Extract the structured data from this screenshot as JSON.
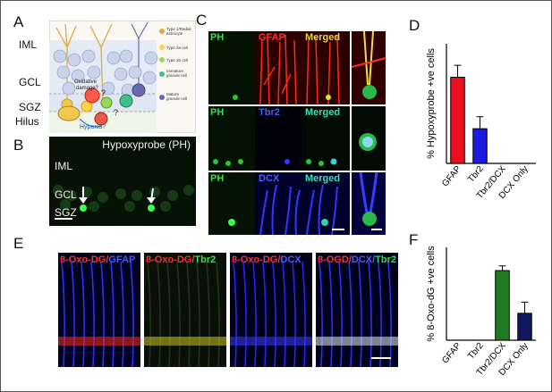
{
  "panels": {
    "A": {
      "letter": "A",
      "layers": [
        "IML",
        "GCL",
        "SGZ",
        "Hilus"
      ],
      "legend": [
        "Type 1/Radial astrocyte",
        "Type 2a cell",
        "Type 2b cell",
        "Immature granule cell",
        "Mature granule cell"
      ],
      "annotations": [
        "Oxidative damage?",
        "Hypoxia?",
        "?",
        "?"
      ]
    },
    "B": {
      "letter": "B",
      "title": "Hypoxyprobe (PH)",
      "layers": [
        "IML",
        "GCL",
        "SGZ"
      ]
    },
    "C": {
      "letter": "C",
      "rows": [
        [
          "PH",
          "GFAP",
          "Merged"
        ],
        [
          "PH",
          "Tbr2",
          "Merged"
        ],
        [
          "PH",
          "DCX",
          "Merged"
        ]
      ]
    },
    "E": {
      "letter": "E",
      "labels": [
        [
          {
            "t": "8-Oxo-DG",
            "c": "#ff3030"
          },
          {
            "t": "/",
            "c": "#ff3030"
          },
          {
            "t": "GFAP",
            "c": "#4a5cff"
          }
        ],
        [
          {
            "t": "8-Oxo-DG",
            "c": "#ff3030"
          },
          {
            "t": "/",
            "c": "#ff3030"
          },
          {
            "t": "Tbr2",
            "c": "#33e04a"
          }
        ],
        [
          {
            "t": "8-Oxo-DG",
            "c": "#ff3030"
          },
          {
            "t": "/",
            "c": "#ff3030"
          },
          {
            "t": "DCX",
            "c": "#4a5cff"
          }
        ],
        [
          {
            "t": "8-OGD",
            "c": "#ff3030"
          },
          {
            "t": "/",
            "c": "#ff3030"
          },
          {
            "t": "DCX",
            "c": "#4a5cff"
          },
          {
            "t": "/",
            "c": "#4a5cff"
          },
          {
            "t": "Tbr2",
            "c": "#33e04a"
          }
        ]
      ]
    }
  },
  "chart_data": [
    {
      "letter": "D",
      "type": "bar",
      "ylabel": "% Hypoxyprobe +ve cells",
      "categories": [
        "GFAP",
        "Tbr2",
        "Tbr2/DCX",
        "DCX Only"
      ],
      "values": [
        72,
        29,
        0,
        0
      ],
      "errors": [
        10,
        10,
        0,
        0
      ],
      "colors": [
        "#e8101c",
        "#1a1ae0",
        "#2a9a2a",
        "#101860"
      ],
      "ylim": [
        0,
        100
      ],
      "grid": false
    },
    {
      "letter": "F",
      "type": "bar",
      "ylabel": "% 8-Oxo-dG +ve cells",
      "categories": [
        "GFAP",
        "Tbr2",
        "Tbr2/DCX",
        "DCX Only"
      ],
      "values": [
        0,
        0,
        75,
        29
      ],
      "errors": [
        0,
        0,
        5,
        12
      ],
      "colors": [
        "#e8101c",
        "#1a1ae0",
        "#217a21",
        "#101860"
      ],
      "ylim": [
        0,
        100
      ],
      "grid": false
    }
  ]
}
